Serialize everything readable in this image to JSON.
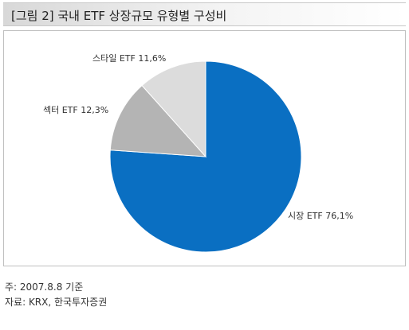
{
  "title": "[그림 2] 국내 ETF 상장규모 유형별 구성비",
  "chart_data": {
    "type": "pie",
    "title": "[그림 2] 국내 ETF 상장규모 유형별 구성비",
    "slices": [
      {
        "label": "시장 ETF 76,1%",
        "value": 76.1,
        "color": "#0a6fc2"
      },
      {
        "label": "섹터 ETF 12,3%",
        "value": 12.3,
        "color": "#b4b4b4"
      },
      {
        "label": "스타일 ETF 11,6%",
        "value": 11.6,
        "color": "#dcdcdc"
      }
    ],
    "start": "12 o'clock",
    "direction": "clockwise",
    "legend": "none (labels beside slices)"
  },
  "footnotes": {
    "basis": "주: 2007.8.8 기준",
    "source": "자료: KRX, 한국투자증권"
  }
}
